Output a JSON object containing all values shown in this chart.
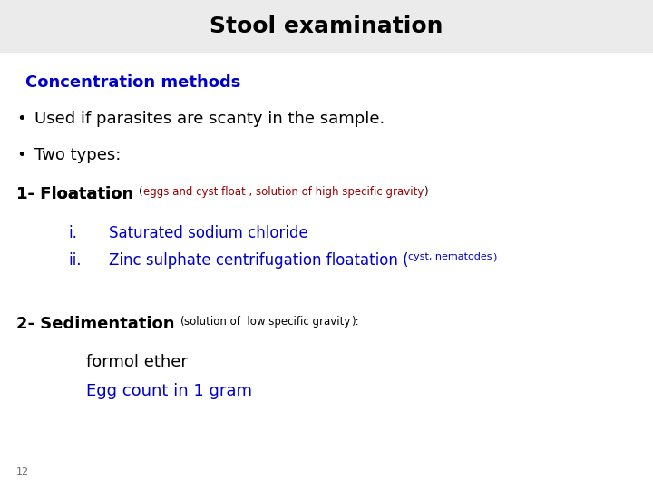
{
  "title": "Stool examination",
  "title_bg": "#ebebeb",
  "title_color": "#000000",
  "title_fontsize": 18,
  "section_heading": "Concentration methods",
  "section_heading_color": "#0000cc",
  "section_heading_fontsize": 13,
  "bullet1": "Used if parasites are scanty in the sample.",
  "bullet2": "Two types:",
  "bullet_color": "#000000",
  "bullet_fontsize": 13,
  "floatation_label": "1- Floatation ",
  "floatation_note": "eggs and cyst float , solution of high specific gravity",
  "floatation_label_color": "#000000",
  "floatation_note_color": "#990000",
  "floatation_fontsize": 13,
  "floatation_note_fontsize": 8.5,
  "item_i_label": "i.",
  "item_i_text": "Saturated sodium chloride",
  "item_ii_label": "ii.",
  "item_ii_text_main": "Zinc sulphate centrifugation floatation (",
  "item_ii_note": "cyst, nematodes",
  "item_ii_text_end": ").",
  "items_color": "#0000cc",
  "items_fontsize": 12,
  "items_note_fontsize": 8,
  "sedimentation_label": "2- Sedimentation ",
  "sedimentation_note": "solution of  low specific gravity",
  "sedimentation_paren_close": "):",
  "sedimentation_label_color": "#000000",
  "sedimentation_note_color": "#000000",
  "sedimentation_fontsize": 13,
  "sedimentation_note_fontsize": 8.5,
  "formol_text": "formol ether",
  "formol_color": "#000000",
  "formol_fontsize": 13,
  "egg_text": "Egg count in 1 gram",
  "egg_color": "#0000cc",
  "egg_fontsize": 13,
  "page_number": "12",
  "page_number_fontsize": 8,
  "page_number_color": "#666666",
  "fig_width": 7.2,
  "fig_height": 5.4,
  "fig_dpi": 100,
  "bg_color": "#ffffff"
}
